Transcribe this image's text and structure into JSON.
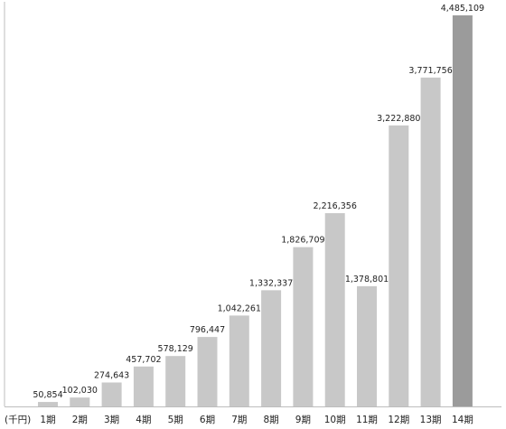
{
  "chart_data": {
    "type": "bar",
    "title": "",
    "xlabel": "",
    "ylabel": "",
    "unit_label": "(千円)",
    "categories": [
      "1期",
      "2期",
      "3期",
      "4期",
      "5期",
      "6期",
      "7期",
      "8期",
      "9期",
      "10期",
      "11期",
      "12期",
      "13期",
      "14期"
    ],
    "values": [
      50854,
      102030,
      274643,
      457702,
      578129,
      796447,
      1042261,
      1332337,
      1826709,
      2216356,
      1378801,
      3222880,
      3771756,
      4485109
    ],
    "value_labels": [
      "50,854",
      "102,030",
      "274,643",
      "457,702",
      "578,129",
      "796,447",
      "1,042,261",
      "1,332,337",
      "1,826,709",
      "2,216,356",
      "1,378,801",
      "3,222,880",
      "3,771,756",
      "4,485,109"
    ],
    "ylim": [
      0,
      4485109
    ],
    "grid": false,
    "legend": "none",
    "colors": {
      "bar": "#c8c8c8",
      "highlight_bar": "#9b9b9b",
      "axis": "#bdbdbd",
      "text": "#222222"
    },
    "highlight_index": 13
  }
}
